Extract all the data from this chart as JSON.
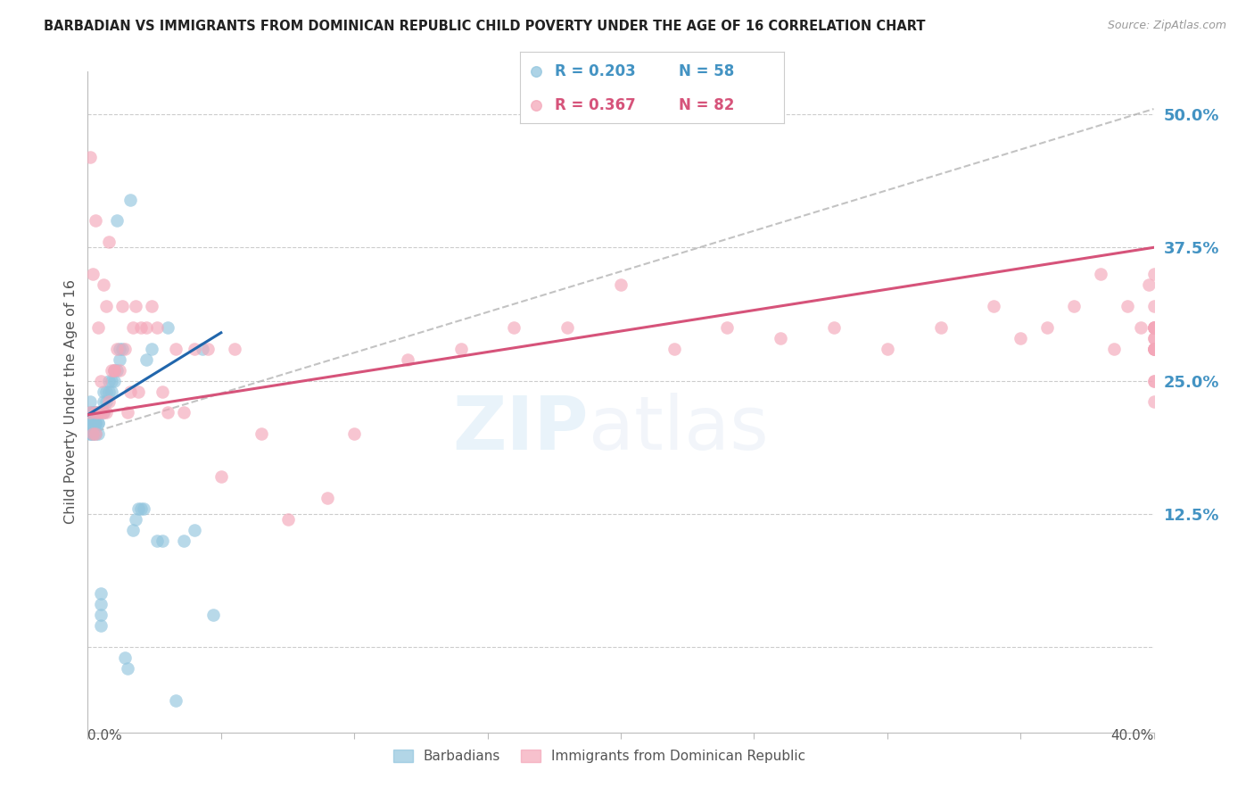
{
  "title": "BARBADIAN VS IMMIGRANTS FROM DOMINICAN REPUBLIC CHILD POVERTY UNDER THE AGE OF 16 CORRELATION CHART",
  "source": "Source: ZipAtlas.com",
  "ylabel": "Child Poverty Under the Age of 16",
  "xmin": 0.0,
  "xmax": 0.4,
  "ymin": -0.08,
  "ymax": 0.54,
  "yticks": [
    0.0,
    0.125,
    0.25,
    0.375,
    0.5
  ],
  "ytick_labels": [
    "",
    "12.5%",
    "25.0%",
    "37.5%",
    "50.0%"
  ],
  "legend_r1": "R = 0.203",
  "legend_n1": "N = 58",
  "legend_r2": "R = 0.367",
  "legend_n2": "N = 82",
  "color_blue": "#92c5de",
  "color_pink": "#f4a7b9",
  "color_blue_text": "#4393c3",
  "color_pink_text": "#d6537a",
  "color_trendline_blue": "#2166ac",
  "color_trendline_pink": "#d6537a",
  "color_dash": "#aaaaaa",
  "barbadian_x": [
    0.001,
    0.001,
    0.001,
    0.001,
    0.001,
    0.002,
    0.002,
    0.002,
    0.002,
    0.002,
    0.002,
    0.003,
    0.003,
    0.003,
    0.003,
    0.003,
    0.004,
    0.004,
    0.004,
    0.004,
    0.005,
    0.005,
    0.005,
    0.005,
    0.006,
    0.006,
    0.006,
    0.007,
    0.007,
    0.008,
    0.008,
    0.009,
    0.009,
    0.01,
    0.01,
    0.011,
    0.011,
    0.012,
    0.012,
    0.013,
    0.014,
    0.015,
    0.016,
    0.017,
    0.018,
    0.019,
    0.02,
    0.021,
    0.022,
    0.024,
    0.026,
    0.028,
    0.03,
    0.033,
    0.036,
    0.04,
    0.043,
    0.047
  ],
  "barbadian_y": [
    0.2,
    0.21,
    0.22,
    0.23,
    0.2,
    0.2,
    0.21,
    0.22,
    0.21,
    0.22,
    0.2,
    0.2,
    0.21,
    0.22,
    0.21,
    0.22,
    0.21,
    0.22,
    0.2,
    0.21,
    0.02,
    0.03,
    0.04,
    0.05,
    0.22,
    0.23,
    0.24,
    0.23,
    0.24,
    0.24,
    0.25,
    0.24,
    0.25,
    0.25,
    0.26,
    0.26,
    0.4,
    0.27,
    0.28,
    0.28,
    -0.01,
    -0.02,
    0.42,
    0.11,
    0.12,
    0.13,
    0.13,
    0.13,
    0.27,
    0.28,
    0.1,
    0.1,
    0.3,
    -0.05,
    0.1,
    0.11,
    0.28,
    0.03
  ],
  "dominican_x": [
    0.001,
    0.001,
    0.002,
    0.002,
    0.003,
    0.003,
    0.003,
    0.004,
    0.004,
    0.005,
    0.005,
    0.006,
    0.006,
    0.007,
    0.007,
    0.008,
    0.008,
    0.009,
    0.01,
    0.01,
    0.011,
    0.012,
    0.013,
    0.014,
    0.015,
    0.016,
    0.017,
    0.018,
    0.019,
    0.02,
    0.022,
    0.024,
    0.026,
    0.028,
    0.03,
    0.033,
    0.036,
    0.04,
    0.045,
    0.05,
    0.055,
    0.065,
    0.075,
    0.09,
    0.1,
    0.12,
    0.14,
    0.16,
    0.18,
    0.2,
    0.22,
    0.24,
    0.26,
    0.28,
    0.3,
    0.32,
    0.34,
    0.35,
    0.36,
    0.37,
    0.38,
    0.385,
    0.39,
    0.395,
    0.398,
    0.4,
    0.4,
    0.4,
    0.4,
    0.4,
    0.4,
    0.4,
    0.4,
    0.4,
    0.4,
    0.4,
    0.4,
    0.4,
    0.4,
    0.4,
    0.4,
    0.4
  ],
  "dominican_y": [
    0.22,
    0.46,
    0.2,
    0.35,
    0.2,
    0.22,
    0.4,
    0.22,
    0.3,
    0.25,
    0.22,
    0.34,
    0.22,
    0.32,
    0.22,
    0.23,
    0.38,
    0.26,
    0.26,
    0.26,
    0.28,
    0.26,
    0.32,
    0.28,
    0.22,
    0.24,
    0.3,
    0.32,
    0.24,
    0.3,
    0.3,
    0.32,
    0.3,
    0.24,
    0.22,
    0.28,
    0.22,
    0.28,
    0.28,
    0.16,
    0.28,
    0.2,
    0.12,
    0.14,
    0.2,
    0.27,
    0.28,
    0.3,
    0.3,
    0.34,
    0.28,
    0.3,
    0.29,
    0.3,
    0.28,
    0.3,
    0.32,
    0.29,
    0.3,
    0.32,
    0.35,
    0.28,
    0.32,
    0.3,
    0.34,
    0.23,
    0.28,
    0.3,
    0.28,
    0.3,
    0.3,
    0.32,
    0.29,
    0.35,
    0.28,
    0.3,
    0.25,
    0.28,
    0.3,
    0.28,
    0.25,
    0.29
  ],
  "blue_trendline_x": [
    0.0,
    0.05
  ],
  "blue_trendline_y": [
    0.218,
    0.295
  ],
  "pink_trendline_x": [
    0.0,
    0.4
  ],
  "pink_trendline_y": [
    0.218,
    0.375
  ],
  "dash_line_x": [
    0.0,
    0.4
  ],
  "dash_line_y": [
    0.2,
    0.505
  ]
}
